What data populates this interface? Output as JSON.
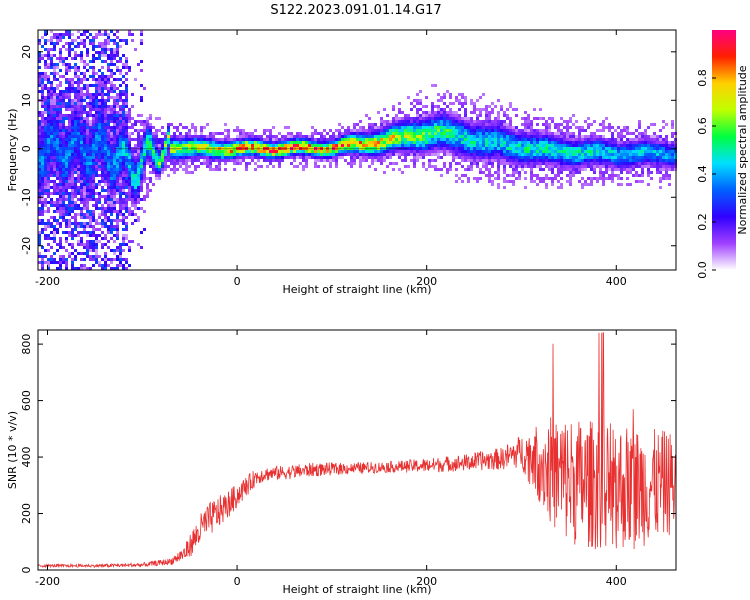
{
  "title": "S122.2023.091.01.14.G17",
  "chart_data": [
    {
      "type": "heatmap",
      "title": "S122.2023.091.01.14.G17",
      "xlabel": "Height of straight line (km)",
      "ylabel": "Frequency (Hz)",
      "xlim": [
        -210,
        463
      ],
      "ylim": [
        -25,
        24.5
      ],
      "xticks": [
        -200,
        0,
        200,
        400
      ],
      "yticks": [
        -20,
        -10,
        0,
        10,
        20
      ],
      "xtick_labels": [
        "-200",
        "0",
        "200",
        "400"
      ],
      "ytick_labels": [
        "-20",
        "-10",
        "0",
        "10",
        "20"
      ],
      "colorbar": {
        "label": "Normalized spectral amplitude",
        "range": [
          0,
          1
        ],
        "ticks": [
          0.0,
          0.2,
          0.4,
          0.6,
          0.8
        ],
        "tick_labels": [
          "0.0",
          "0.2",
          "0.4",
          "0.6",
          "0.8"
        ],
        "colors": [
          "#ffffff",
          "#a040ff",
          "#3000ff",
          "#0060ff",
          "#00e0ff",
          "#00ff40",
          "#c0ff00",
          "#ffd000",
          "#ff2000",
          "#ff0080"
        ]
      },
      "ridge": [
        {
          "x": -140,
          "y": 0,
          "width": 4,
          "peak": 0.35
        },
        {
          "x": -110,
          "y": -4,
          "width": 3,
          "peak": 0.45
        },
        {
          "x": -80,
          "y": 0.5,
          "width": 1.5,
          "peak": 0.6
        },
        {
          "x": -40,
          "y": 0,
          "width": 1.2,
          "peak": 0.7
        },
        {
          "x": 40,
          "y": 0,
          "width": 1.0,
          "peak": 0.9
        },
        {
          "x": 100,
          "y": 0.2,
          "width": 1.0,
          "peak": 0.85
        },
        {
          "x": 150,
          "y": 1.5,
          "width": 1.5,
          "peak": 0.75
        },
        {
          "x": 210,
          "y": 3.5,
          "width": 2.2,
          "peak": 0.55
        },
        {
          "x": 260,
          "y": 1.5,
          "width": 2.2,
          "peak": 0.45
        },
        {
          "x": 330,
          "y": -0.5,
          "width": 1.8,
          "peak": 0.5
        },
        {
          "x": 400,
          "y": -1,
          "width": 1.6,
          "peak": 0.45
        },
        {
          "x": 463,
          "y": -1,
          "width": 1.6,
          "peak": 0.4
        }
      ]
    },
    {
      "type": "line",
      "xlabel": "Height of straight line (km)",
      "ylabel": "SNR (10 * v/v)",
      "xlim": [
        -210,
        463
      ],
      "ylim": [
        0,
        850
      ],
      "xticks": [
        -200,
        0,
        200,
        400
      ],
      "yticks": [
        0,
        200,
        400,
        600,
        800
      ],
      "xtick_labels": [
        "-200",
        "0",
        "200",
        "400"
      ],
      "ytick_labels": [
        "0",
        "200",
        "400",
        "600",
        "800"
      ],
      "line_color": "#e83030",
      "series": [
        {
          "name": "SNR",
          "x": [
            -210,
            -150,
            -100,
            -70,
            -55,
            -45,
            -35,
            -25,
            -10,
            5,
            20,
            30,
            50,
            80,
            120,
            160,
            200,
            240,
            280,
            300,
            320,
            340,
            360,
            380,
            400,
            420,
            440,
            463
          ],
          "y": [
            15,
            15,
            18,
            30,
            60,
            110,
            160,
            190,
            230,
            280,
            330,
            340,
            345,
            355,
            360,
            365,
            370,
            380,
            395,
            420,
            380,
            330,
            310,
            300,
            300,
            290,
            300,
            310
          ],
          "noise": [
            5,
            5,
            8,
            12,
            30,
            50,
            60,
            60,
            50,
            40,
            30,
            25,
            25,
            25,
            20,
            20,
            25,
            30,
            40,
            60,
            150,
            230,
            230,
            230,
            230,
            220,
            200,
            180
          ]
        }
      ]
    }
  ]
}
